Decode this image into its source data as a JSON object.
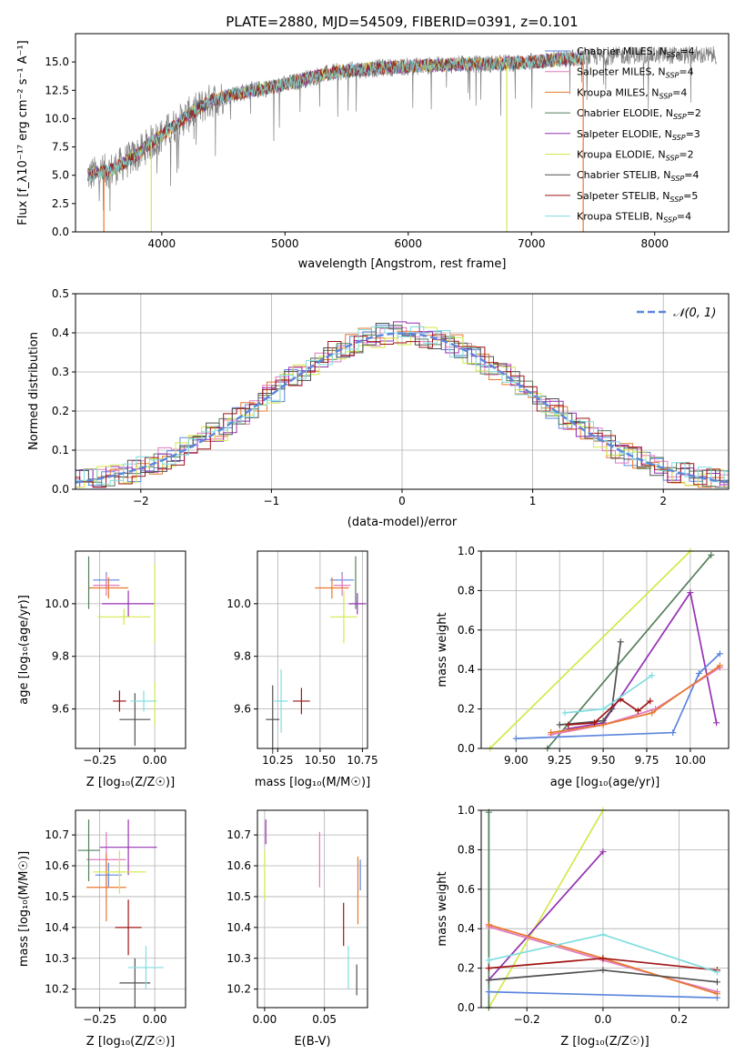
{
  "colors": {
    "Chabrier MILES": "#5b86dd",
    "Salpeter MILES": "#e27ac1",
    "Kroupa MILES": "#e8772b",
    "Chabrier ELODIE": "#547f5a",
    "Salpeter ELODIE": "#9632b2",
    "Kroupa ELODIE": "#d4e84a",
    "Chabrier STELIB": "#505050",
    "Salpeter STELIB": "#a01515",
    "Kroupa STELIB": "#7fdde0",
    "data": "#808080",
    "grid": "#b0b0b0"
  },
  "chart_data": [
    {
      "id": "spectrum",
      "type": "line",
      "title": "PLATE=2880, MJD=54509, FIBERID=0391, z=0.101",
      "xlabel": "wavelength [Angstrom, rest frame]",
      "ylabel": "Flux [f_λ10⁻¹⁷ erg cm⁻² s⁻¹ A⁻¹]",
      "xlim": [
        3300,
        8600
      ],
      "ylim": [
        0,
        17.5
      ],
      "xticks": [
        "4000",
        "5000",
        "6000",
        "7000",
        "8000"
      ],
      "yticks": [
        "0.0",
        "2.5",
        "5.0",
        "7.5",
        "10.0",
        "12.5",
        "15.0"
      ],
      "grid": false,
      "legend_position": "right",
      "legend": [
        {
          "label": "Chabrier MILES, N",
          "sub": "SSP",
          "suffix": "=4"
        },
        {
          "label": "Salpeter MILES, N",
          "sub": "SSP",
          "suffix": "=4"
        },
        {
          "label": "Kroupa MILES, N",
          "sub": "SSP",
          "suffix": "=4"
        },
        {
          "label": "Chabrier ELODIE, N",
          "sub": "SSP",
          "suffix": "=2"
        },
        {
          "label": "Salpeter ELODIE, N",
          "sub": "SSP",
          "suffix": "=3"
        },
        {
          "label": "Kroupa ELODIE, N",
          "sub": "SSP",
          "suffix": "=2"
        },
        {
          "label": "Chabrier STELIB, N",
          "sub": "SSP",
          "suffix": "=4"
        },
        {
          "label": "Salpeter STELIB, N",
          "sub": "SSP",
          "suffix": "=5"
        },
        {
          "label": "Kroupa STELIB, N",
          "sub": "SSP",
          "suffix": "=4"
        }
      ],
      "continuum": [
        [
          3400,
          5.0
        ],
        [
          3600,
          5.5
        ],
        [
          3800,
          6.8
        ],
        [
          3900,
          7.8
        ],
        [
          4000,
          8.5
        ],
        [
          4200,
          10.2
        ],
        [
          4400,
          11.6
        ],
        [
          4600,
          12.2
        ],
        [
          4800,
          12.6
        ],
        [
          5000,
          13.0
        ],
        [
          5200,
          13.6
        ],
        [
          5400,
          14.1
        ],
        [
          5600,
          14.3
        ],
        [
          5800,
          14.5
        ],
        [
          6000,
          14.6
        ],
        [
          6200,
          14.7
        ],
        [
          6400,
          14.8
        ],
        [
          6600,
          14.8
        ],
        [
          6800,
          14.9
        ],
        [
          7000,
          15.0
        ],
        [
          7200,
          15.2
        ],
        [
          7400,
          15.3
        ]
      ],
      "data_continuum": [
        [
          3400,
          5.0
        ],
        [
          3600,
          5.5
        ],
        [
          3800,
          6.8
        ],
        [
          3900,
          7.8
        ],
        [
          4000,
          8.5
        ],
        [
          4200,
          10.2
        ],
        [
          4400,
          11.6
        ],
        [
          4600,
          12.2
        ],
        [
          4800,
          12.6
        ],
        [
          5000,
          13.0
        ],
        [
          5200,
          13.6
        ],
        [
          5400,
          14.1
        ],
        [
          5600,
          14.3
        ],
        [
          5800,
          14.5
        ],
        [
          6000,
          14.6
        ],
        [
          6200,
          14.7
        ],
        [
          6400,
          14.8
        ],
        [
          6600,
          14.8
        ],
        [
          6800,
          14.9
        ],
        [
          7000,
          15.0
        ],
        [
          7200,
          15.2
        ],
        [
          7400,
          15.4
        ],
        [
          7800,
          15.6
        ],
        [
          8200,
          15.6
        ],
        [
          8500,
          15.6
        ]
      ],
      "model_drops": [
        {
          "x": 3530,
          "model": "Kroupa MILES"
        },
        {
          "x": 3915,
          "model": "Kroupa ELODIE"
        },
        {
          "x": 6800,
          "model": "Kroupa ELODIE"
        },
        {
          "x": 7420,
          "model": "Kroupa MILES"
        }
      ]
    },
    {
      "id": "residuals",
      "type": "histogram",
      "xlabel": "(data-model)/error",
      "ylabel": "Normed distribution",
      "xlim": [
        -2.5,
        2.5
      ],
      "ylim": [
        0,
        0.5
      ],
      "xticks": [
        "−2",
        "−1",
        "0",
        "1",
        "2"
      ],
      "yticks": [
        "0.0",
        "0.1",
        "0.2",
        "0.3",
        "0.4",
        "0.5"
      ],
      "grid": true,
      "legend_position": "upper right",
      "legend": [
        "N(0,1)"
      ],
      "bin_width": 0.1
    },
    {
      "id": "age-vs-Z",
      "type": "scatter",
      "xlabel": "Z [log₁₀(Z/Z☉)]",
      "ylabel": "age  [log₁₀(age/yr)]",
      "xlim": [
        -0.36,
        0.14
      ],
      "ylim": [
        9.45,
        10.2
      ],
      "xticks": [
        "−0.25",
        "0.00"
      ],
      "xtick_values": [
        -0.25,
        0.0
      ],
      "yticks": [
        "9.6",
        "9.8",
        "10.0"
      ],
      "ytick_values": [
        9.6,
        9.8,
        10.0
      ],
      "grid": true,
      "points": [
        {
          "model": "Chabrier MILES",
          "x": -0.22,
          "xerr": 0.06,
          "y": 10.09,
          "yerr": 0.03
        },
        {
          "model": "Salpeter MILES",
          "x": -0.22,
          "xerr": 0.06,
          "y": 10.07,
          "yerr": 0.04
        },
        {
          "model": "Kroupa MILES",
          "x": -0.21,
          "xerr": 0.09,
          "y": 10.06,
          "yerr": 0.04
        },
        {
          "model": "Chabrier ELODIE",
          "x": -0.3,
          "xerr": 0.0,
          "y": 10.08,
          "yerr": 0.1
        },
        {
          "model": "Salpeter ELODIE",
          "x": -0.12,
          "xerr": 0.12,
          "y": 10.0,
          "yerr": 0.05
        },
        {
          "model": "Kroupa ELODIE",
          "x": -0.14,
          "xerr": 0.12,
          "y": 9.95,
          "yerr": 0.03
        },
        {
          "model": "Chabrier STELIB",
          "x": -0.09,
          "xerr": 0.07,
          "y": 9.56,
          "yerr": 0.1
        },
        {
          "model": "Salpeter STELIB",
          "x": -0.16,
          "xerr": 0.03,
          "y": 9.63,
          "yerr": 0.04
        },
        {
          "model": "Kroupa STELIB",
          "x": -0.05,
          "xerr": 0.06,
          "y": 9.63,
          "yerr": 0.04
        },
        {
          "model": "Kroupa ELODIE",
          "x": 0.0,
          "xerr": 0.0,
          "y": 10.0,
          "yerr": 0.15
        },
        {
          "model": "Kroupa ELODIE",
          "x": 0.0,
          "xerr": 0.0,
          "y": 9.62,
          "yerr": 0.08
        }
      ]
    },
    {
      "id": "age-vs-mass",
      "type": "scatter",
      "xlabel": "mass [log₁₀(M/M☉)]",
      "ylabel": "",
      "xlim": [
        10.13,
        10.78
      ],
      "ylim": [
        9.45,
        10.2
      ],
      "xticks": [
        "10.25",
        "10.50",
        "10.75"
      ],
      "xtick_values": [
        10.25,
        10.5,
        10.75
      ],
      "yticks": [
        "9.6",
        "9.8",
        "10.0"
      ],
      "ytick_values": [
        9.6,
        9.8,
        10.0
      ],
      "grid": true,
      "points": [
        {
          "model": "Chabrier MILES",
          "x": 10.63,
          "xerr": 0.07,
          "y": 10.09,
          "yerr": 0.03
        },
        {
          "model": "Salpeter MILES",
          "x": 10.63,
          "xerr": 0.05,
          "y": 10.07,
          "yerr": 0.04
        },
        {
          "model": "Kroupa MILES",
          "x": 10.57,
          "xerr": 0.1,
          "y": 10.06,
          "yerr": 0.04
        },
        {
          "model": "Chabrier ELODIE",
          "x": 10.71,
          "xerr": 0.0,
          "y": 10.08,
          "yerr": 0.1
        },
        {
          "model": "Salpeter ELODIE",
          "x": 10.72,
          "xerr": 0.05,
          "y": 10.0,
          "yerr": 0.04
        },
        {
          "model": "Kroupa ELODIE",
          "x": 10.64,
          "xerr": 0.08,
          "y": 9.95,
          "yerr": 0.1
        },
        {
          "model": "Chabrier STELIB",
          "x": 10.22,
          "xerr": 0.04,
          "y": 9.56,
          "yerr": 0.13
        },
        {
          "model": "Salpeter STELIB",
          "x": 10.39,
          "xerr": 0.05,
          "y": 9.63,
          "yerr": 0.05
        },
        {
          "model": "Kroupa STELIB",
          "x": 10.27,
          "xerr": 0.04,
          "y": 9.63,
          "yerr": 0.12
        }
      ]
    },
    {
      "id": "weight-vs-age",
      "type": "line",
      "xlabel": "age  [log₁₀(age/yr)]",
      "ylabel": "mass weight",
      "xlim": [
        8.8,
        10.22
      ],
      "ylim": [
        0,
        1
      ],
      "xticks": [
        "9.00",
        "9.25",
        "9.50",
        "9.75",
        "10.00"
      ],
      "xtick_values": [
        9.0,
        9.25,
        9.5,
        9.75,
        10.0
      ],
      "yticks": [
        "0.0",
        "0.2",
        "0.4",
        "0.6",
        "0.8",
        "1.0"
      ],
      "ytick_values": [
        0,
        0.2,
        0.4,
        0.6,
        0.8,
        1.0
      ],
      "grid": true,
      "series": [
        {
          "model": "Kroupa ELODIE",
          "x": [
            8.85,
            10.0
          ],
          "y": [
            0.0,
            1.0
          ]
        },
        {
          "model": "Chabrier ELODIE",
          "x": [
            9.18,
            10.12
          ],
          "y": [
            0.0,
            0.98
          ]
        },
        {
          "model": "Salpeter ELODIE",
          "x": [
            9.3,
            9.5,
            10.0,
            10.15
          ],
          "y": [
            0.1,
            0.13,
            0.79,
            0.13
          ]
        },
        {
          "model": "Chabrier MILES",
          "x": [
            9.0,
            9.9,
            10.05,
            10.17
          ],
          "y": [
            0.05,
            0.08,
            0.38,
            0.48
          ]
        },
        {
          "model": "Salpeter MILES",
          "x": [
            9.2,
            9.5,
            9.8,
            10.17
          ],
          "y": [
            0.07,
            0.12,
            0.2,
            0.41
          ]
        },
        {
          "model": "Kroupa MILES",
          "x": [
            9.2,
            9.5,
            9.78,
            10.17
          ],
          "y": [
            0.08,
            0.12,
            0.18,
            0.42
          ]
        },
        {
          "model": "Chabrier STELIB",
          "x": [
            9.25,
            9.5,
            9.55,
            9.6
          ],
          "y": [
            0.12,
            0.14,
            0.2,
            0.54
          ]
        },
        {
          "model": "Salpeter STELIB",
          "x": [
            9.3,
            9.45,
            9.6,
            9.7,
            9.77
          ],
          "y": [
            0.12,
            0.13,
            0.25,
            0.19,
            0.24
          ]
        },
        {
          "model": "Kroupa STELIB",
          "x": [
            9.28,
            9.5,
            9.78
          ],
          "y": [
            0.18,
            0.2,
            0.37
          ]
        }
      ]
    },
    {
      "id": "mass-vs-Z",
      "type": "scatter",
      "xlabel": "Z [log₁₀(Z/Z☉)]",
      "ylabel": "mass [log₁₀(M/M☉)]",
      "xlim": [
        -0.36,
        0.14
      ],
      "ylim": [
        10.14,
        10.78
      ],
      "xticks": [
        "−0.25",
        "0.00"
      ],
      "xtick_values": [
        -0.25,
        0.0
      ],
      "yticks": [
        "10.2",
        "10.3",
        "10.4",
        "10.5",
        "10.6",
        "10.7"
      ],
      "ytick_values": [
        10.2,
        10.3,
        10.4,
        10.5,
        10.6,
        10.7
      ],
      "grid": true,
      "points": [
        {
          "model": "Chabrier MILES",
          "x": -0.21,
          "xerr": 0.06,
          "y": 10.57,
          "yerr": 0.04
        },
        {
          "model": "Salpeter MILES",
          "x": -0.22,
          "xerr": 0.09,
          "y": 10.62,
          "yerr": 0.09
        },
        {
          "model": "Kroupa MILES",
          "x": -0.22,
          "xerr": 0.09,
          "y": 10.53,
          "yerr": 0.11
        },
        {
          "model": "Chabrier ELODIE",
          "x": -0.3,
          "xerr": 0.05,
          "y": 10.65,
          "yerr": 0.1
        },
        {
          "model": "Salpeter ELODIE",
          "x": -0.12,
          "xerr": 0.13,
          "y": 10.66,
          "yerr": 0.09
        },
        {
          "model": "Kroupa ELODIE",
          "x": -0.16,
          "xerr": 0.12,
          "y": 10.58,
          "yerr": 0.07
        },
        {
          "model": "Chabrier STELIB",
          "x": -0.09,
          "xerr": 0.07,
          "y": 10.22,
          "yerr": 0.08
        },
        {
          "model": "Salpeter STELIB",
          "x": -0.12,
          "xerr": 0.06,
          "y": 10.4,
          "yerr": 0.09
        },
        {
          "model": "Kroupa STELIB",
          "x": -0.04,
          "xerr": 0.08,
          "y": 10.27,
          "yerr": 0.07
        }
      ]
    },
    {
      "id": "mass-vs-ebv",
      "type": "scatter",
      "xlabel": "E(B-V)",
      "ylabel": "",
      "xlim": [
        -0.006,
        0.086
      ],
      "ylim": [
        10.14,
        10.78
      ],
      "xticks": [
        "0.00",
        "0.05"
      ],
      "xtick_values": [
        0.0,
        0.05
      ],
      "yticks": [
        "10.2",
        "10.3",
        "10.4",
        "10.5",
        "10.6",
        "10.7"
      ],
      "ytick_values": [
        10.2,
        10.3,
        10.4,
        10.5,
        10.6,
        10.7
      ],
      "grid": true,
      "points": [
        {
          "model": "Salpeter ELODIE",
          "x": 0.001,
          "xerr": 0.0,
          "y": 10.71,
          "yerr": 0.04
        },
        {
          "model": "Kroupa ELODIE",
          "x": 0.0,
          "xerr": 0.0,
          "y": 10.57,
          "yerr": 0.08
        },
        {
          "model": "Salpeter MILES",
          "x": 0.046,
          "xerr": 0.0,
          "y": 10.62,
          "yerr": 0.09
        },
        {
          "model": "Kroupa MILES",
          "x": 0.078,
          "xerr": 0.0,
          "y": 10.52,
          "yerr": 0.11
        },
        {
          "model": "Chabrier MILES",
          "x": 0.08,
          "xerr": 0.0,
          "y": 10.57,
          "yerr": 0.05
        },
        {
          "model": "Salpeter STELIB",
          "x": 0.066,
          "xerr": 0.0,
          "y": 10.41,
          "yerr": 0.07
        },
        {
          "model": "Kroupa STELIB",
          "x": 0.07,
          "xerr": 0.0,
          "y": 10.27,
          "yerr": 0.07
        },
        {
          "model": "Chabrier STELIB",
          "x": 0.077,
          "xerr": 0.0,
          "y": 10.23,
          "yerr": 0.05
        }
      ]
    },
    {
      "id": "weight-vs-Z",
      "type": "line",
      "xlabel": "Z [log₁₀(Z/Z☉)]",
      "ylabel": "mass weight",
      "xlim": [
        -0.32,
        0.33
      ],
      "ylim": [
        0,
        1
      ],
      "xticks": [
        "−0.2",
        "0.0",
        "0.2"
      ],
      "xtick_values": [
        -0.2,
        0.0,
        0.2
      ],
      "yticks": [
        "0.0",
        "0.2",
        "0.4",
        "0.6",
        "0.8",
        "1.0"
      ],
      "ytick_values": [
        0,
        0.2,
        0.4,
        0.6,
        0.8,
        1.0
      ],
      "grid": true,
      "series": [
        {
          "model": "Kroupa ELODIE",
          "x": [
            -0.3,
            0.0
          ],
          "y": [
            0.0,
            1.0
          ]
        },
        {
          "model": "Chabrier ELODIE",
          "x": [
            -0.3,
            -0.3
          ],
          "y": [
            0.0,
            0.99
          ]
        },
        {
          "model": "Salpeter ELODIE",
          "x": [
            -0.3,
            0.0
          ],
          "y": [
            0.14,
            0.79
          ]
        },
        {
          "model": "Chabrier MILES",
          "x": [
            -0.3,
            0.3
          ],
          "y": [
            0.08,
            0.05
          ]
        },
        {
          "model": "Salpeter MILES",
          "x": [
            -0.3,
            0.0,
            0.3
          ],
          "y": [
            0.41,
            0.24,
            0.08
          ]
        },
        {
          "model": "Kroupa MILES",
          "x": [
            -0.3,
            0.0,
            0.3
          ],
          "y": [
            0.42,
            0.25,
            0.07
          ]
        },
        {
          "model": "Chabrier STELIB",
          "x": [
            -0.3,
            0.0,
            0.3
          ],
          "y": [
            0.14,
            0.19,
            0.13
          ]
        },
        {
          "model": "Salpeter STELIB",
          "x": [
            -0.3,
            0.0,
            0.3
          ],
          "y": [
            0.2,
            0.25,
            0.19
          ]
        },
        {
          "model": "Kroupa STELIB",
          "x": [
            -0.3,
            0.0,
            0.3
          ],
          "y": [
            0.24,
            0.37,
            0.18
          ]
        }
      ]
    }
  ]
}
